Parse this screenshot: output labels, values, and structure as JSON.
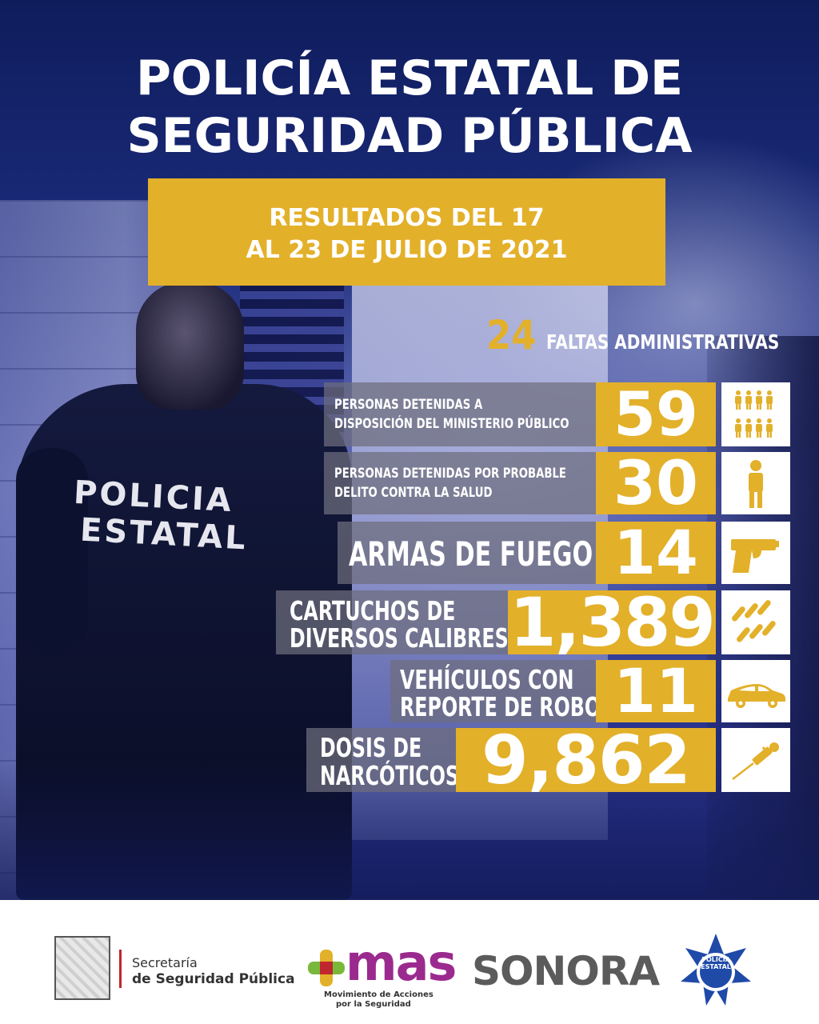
{
  "title": {
    "line1": "POLICÍA ESTATAL DE",
    "line2": "SEGURIDAD PÚBLICA"
  },
  "date": {
    "line1": "RESULTADOS DEL 17",
    "line2": "AL 23 DE JULIO DE 2021"
  },
  "officer": {
    "back_line1": "POLICIA",
    "back_line2": "ESTATAL"
  },
  "faltas": {
    "value": "24",
    "label": "FALTAS ADMINISTRATIVAS"
  },
  "stats": [
    {
      "label_lines": [
        "PERSONAS DETENIDAS A",
        "DISPOSICIÓN DEL MINISTERIO PÚBLICO"
      ],
      "value": "59",
      "icon": "group-people-icon"
    },
    {
      "label_lines": [
        "PERSONAS DETENIDAS POR PROBABLE",
        "DELITO CONTRA LA SALUD"
      ],
      "value": "30",
      "icon": "person-icon"
    },
    {
      "label_lines": [
        "ARMAS DE FUEGO"
      ],
      "value": "14",
      "icon": "pistol-icon"
    },
    {
      "label_lines": [
        "CARTUCHOS DE",
        "DIVERSOS CALIBRES"
      ],
      "value": "1,389",
      "icon": "bullets-icon"
    },
    {
      "label_lines": [
        "VEHÍCULOS CON",
        "REPORTE DE ROBO"
      ],
      "value": "11",
      "icon": "car-icon"
    },
    {
      "label_lines": [
        "DOSIS DE",
        "NARCÓTICOS"
      ],
      "value": "9,862",
      "icon": "syringe-icon"
    }
  ],
  "footer": {
    "secretaria_line1": "Secretaría",
    "secretaria_line2": "de Seguridad Pública",
    "mas_word": "mas",
    "mas_sub1": "Movimiento de Acciones",
    "mas_sub2": "por la Seguridad",
    "sonora": "SONORA",
    "badge_text": "POLICÍA ESTATAL"
  },
  "colors": {
    "accent": "#e3b02a",
    "navy": "#1a2a78",
    "label_bg": "#6e6e7d"
  }
}
